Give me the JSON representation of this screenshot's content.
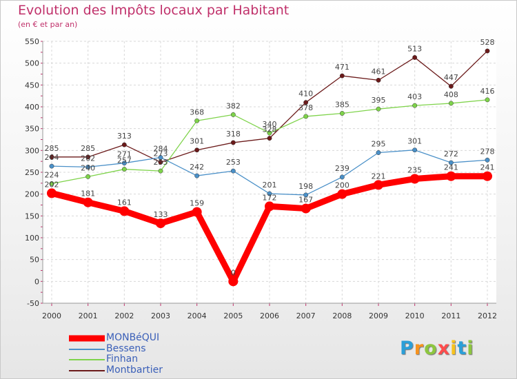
{
  "header": {
    "title": "Evolution des Impôts locaux par Habitant",
    "subtitle": "(en € et par an)"
  },
  "chart_data": {
    "type": "line",
    "title": "Evolution des Impôts locaux par Habitant",
    "subtitle": "(en € et par an)",
    "xlabel": "",
    "ylabel": "",
    "x": [
      "2000",
      "2001",
      "2002",
      "2003",
      "2004",
      "2005",
      "2006",
      "2007",
      "2008",
      "2009",
      "2010",
      "2011",
      "2012"
    ],
    "ylim": [
      -50,
      550
    ],
    "yticks": [
      -50,
      0,
      50,
      100,
      150,
      200,
      250,
      300,
      350,
      400,
      450,
      500,
      550
    ],
    "grid": true,
    "legend_position": "bottom-left",
    "series": [
      {
        "name": "MONBéQUI",
        "color": "#ff0000",
        "values": [
          202,
          181,
          161,
          133,
          159,
          0,
          172,
          167,
          200,
          221,
          235,
          241,
          241
        ]
      },
      {
        "name": "Bessens",
        "color": "#4a90c8",
        "values": [
          264,
          262,
          271,
          284,
          242,
          253,
          201,
          198,
          239,
          295,
          301,
          272,
          278
        ]
      },
      {
        "name": "Finhan",
        "color": "#7ed34a",
        "values": [
          224,
          240,
          257,
          253,
          368,
          382,
          340,
          378,
          385,
          395,
          403,
          408,
          416
        ]
      },
      {
        "name": "Montbartier",
        "color": "#6b1a1a",
        "values": [
          285,
          285,
          313,
          273,
          301,
          318,
          328,
          410,
          471,
          461,
          513,
          447,
          528
        ]
      }
    ]
  },
  "logo": {
    "letters": [
      "P",
      "r",
      "o",
      "x",
      "i",
      "t",
      "i"
    ],
    "colors": [
      "#2a9fd8",
      "#f7931e",
      "#8dc63f",
      "#ff4d4d",
      "#f7c21e",
      "#2a9fd8",
      "#8dc63f"
    ]
  }
}
